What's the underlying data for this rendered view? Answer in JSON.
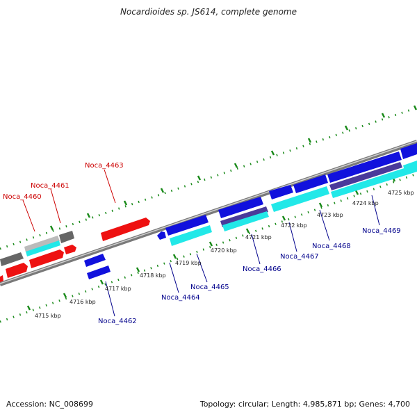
{
  "title": "Nocardioides sp. JS614, complete genome",
  "footer": {
    "accession": "Accession: NC_008699",
    "summary": "Topology: circular; Length: 4,985,871 bp; Genes: 4,700"
  },
  "colors": {
    "forward_gene": "#ee1111",
    "reverse_gene": "#1111dd",
    "cyan_feature": "#22e8e8",
    "purple_feature": "#4a3a9a",
    "gray_feature": "#666666",
    "light_gray_feature": "#bbbbbb",
    "backbone": "#7a7a7a",
    "tick_green": "#1a8a1a",
    "forward_label": "#cc0000",
    "reverse_label": "#00008b"
  },
  "scale_labels": [
    "4715 kbp",
    "4716 kbp",
    "4717 kbp",
    "4718 kbp",
    "4719 kbp",
    "4720 kbp",
    "4721 kbp",
    "4722 kbp",
    "4723 kbp",
    "4724 kbp",
    "4725 kbp"
  ],
  "gene_labels": {
    "forward": [
      "Noca_4460",
      "Noca_4461",
      "Noca_4463"
    ],
    "reverse": [
      "Noca_4462",
      "Noca_4464",
      "Noca_4465",
      "Noca_4466",
      "Noca_4467",
      "Noca_4468",
      "Noca_4469"
    ]
  }
}
